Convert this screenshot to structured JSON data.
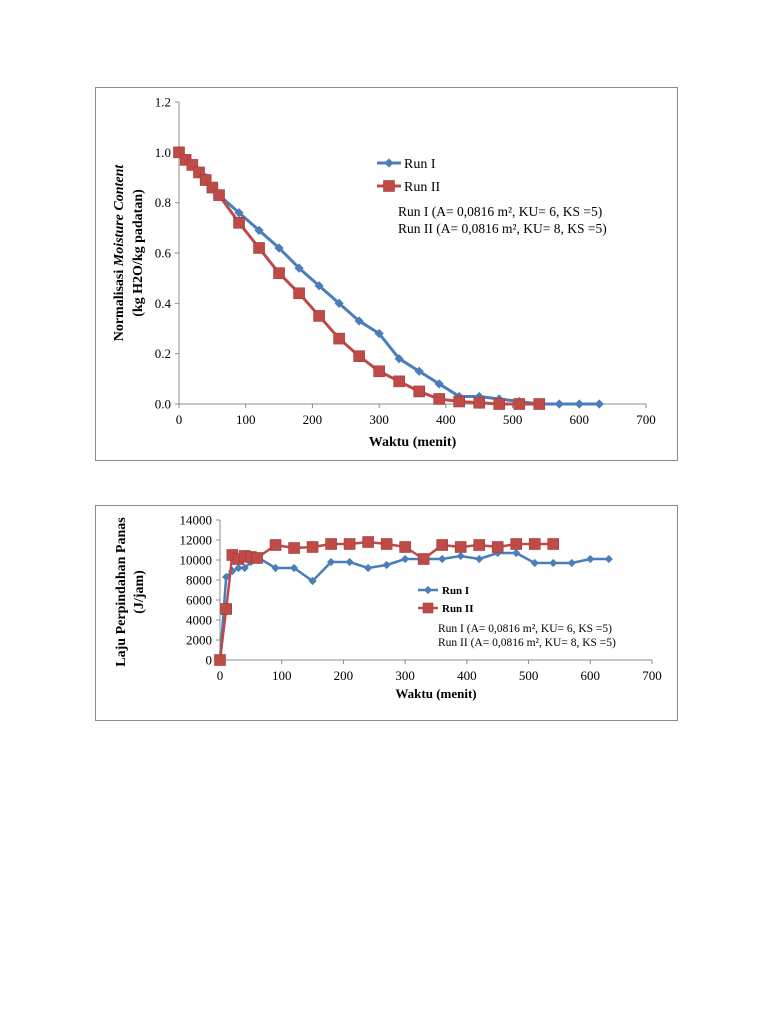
{
  "chart_data": [
    {
      "type": "line",
      "title": "",
      "xlabel": "Waktu (menit)",
      "ylabel_line1_prefix": "Normalisasi ",
      "ylabel_line1_italic": "Moisture Content",
      "ylabel_line2": "(kg H2O/kg padatan)",
      "xlim": [
        0,
        700
      ],
      "ylim": [
        0,
        1.2
      ],
      "xticks": [
        0,
        100,
        200,
        300,
        400,
        500,
        600,
        700
      ],
      "yticks": [
        "0.0",
        "0.2",
        "0.4",
        "0.6",
        "0.8",
        "1.0",
        "1.2"
      ],
      "grid": false,
      "legend_position": "top-right",
      "notes": [
        "Run I  (A= 0,0816 m², KU= 6, KS =5)",
        "Run II (A= 0,0816 m², KU= 8, KS =5)"
      ],
      "series": [
        {
          "name": "Run I",
          "color": "#4a7ebb",
          "marker": "diamond",
          "x": [
            0,
            10,
            20,
            30,
            40,
            50,
            60,
            90,
            120,
            150,
            180,
            210,
            240,
            270,
            300,
            330,
            360,
            390,
            420,
            450,
            480,
            510,
            540,
            570,
            600,
            630
          ],
          "y": [
            1.0,
            0.97,
            0.95,
            0.92,
            0.9,
            0.86,
            0.83,
            0.76,
            0.69,
            0.62,
            0.54,
            0.47,
            0.4,
            0.33,
            0.28,
            0.18,
            0.13,
            0.08,
            0.03,
            0.03,
            0.02,
            0.01,
            0.0,
            0.0,
            0.0,
            0.0
          ]
        },
        {
          "name": "Run II",
          "color": "#be4b48",
          "marker": "square",
          "x": [
            0,
            10,
            20,
            30,
            40,
            50,
            60,
            90,
            120,
            150,
            180,
            210,
            240,
            270,
            300,
            330,
            360,
            390,
            420,
            450,
            480,
            510,
            540
          ],
          "y": [
            1.0,
            0.97,
            0.95,
            0.92,
            0.89,
            0.86,
            0.83,
            0.72,
            0.62,
            0.52,
            0.44,
            0.35,
            0.26,
            0.19,
            0.13,
            0.09,
            0.05,
            0.02,
            0.01,
            0.005,
            0.0,
            0.0,
            0.0
          ]
        }
      ]
    },
    {
      "type": "line",
      "title": "",
      "xlabel": "Waktu (menit)",
      "ylabel_line1": "Laju Perpindahan Panas",
      "ylabel_line2": "(J/jam)",
      "xlim": [
        0,
        700
      ],
      "ylim": [
        0,
        14000
      ],
      "xticks": [
        0,
        100,
        200,
        300,
        400,
        500,
        600,
        700
      ],
      "yticks": [
        "0",
        "2000",
        "4000",
        "6000",
        "8000",
        "10000",
        "12000",
        "14000"
      ],
      "grid": false,
      "legend_position": "center-right",
      "notes": [
        "Run I  (A= 0,0816 m², KU= 6, KS =5)",
        "Run II (A= 0,0816 m², KU= 8, KS =5)"
      ],
      "series": [
        {
          "name": "Run I",
          "color": "#4a7ebb",
          "marker": "diamond",
          "x": [
            0,
            10,
            20,
            30,
            40,
            50,
            60,
            90,
            120,
            150,
            180,
            210,
            240,
            270,
            300,
            330,
            360,
            390,
            420,
            450,
            480,
            510,
            540,
            570,
            600,
            630
          ],
          "y": [
            0,
            8300,
            8900,
            9200,
            9200,
            9800,
            10300,
            9200,
            9200,
            7900,
            9800,
            9800,
            9200,
            9500,
            10100,
            10100,
            10100,
            10400,
            10100,
            10700,
            10700,
            9700,
            9700,
            9700,
            10100,
            10100
          ]
        },
        {
          "name": "Run II",
          "color": "#be4b48",
          "marker": "square",
          "x": [
            0,
            10,
            20,
            30,
            40,
            50,
            60,
            90,
            120,
            150,
            180,
            210,
            240,
            270,
            300,
            330,
            360,
            390,
            420,
            450,
            480,
            510,
            540
          ],
          "y": [
            0,
            5100,
            10500,
            10100,
            10400,
            10300,
            10200,
            11500,
            11200,
            11300,
            11600,
            11600,
            11800,
            11600,
            11300,
            10100,
            11500,
            11300,
            11500,
            11300,
            11600,
            11600,
            11600
          ]
        }
      ]
    }
  ]
}
